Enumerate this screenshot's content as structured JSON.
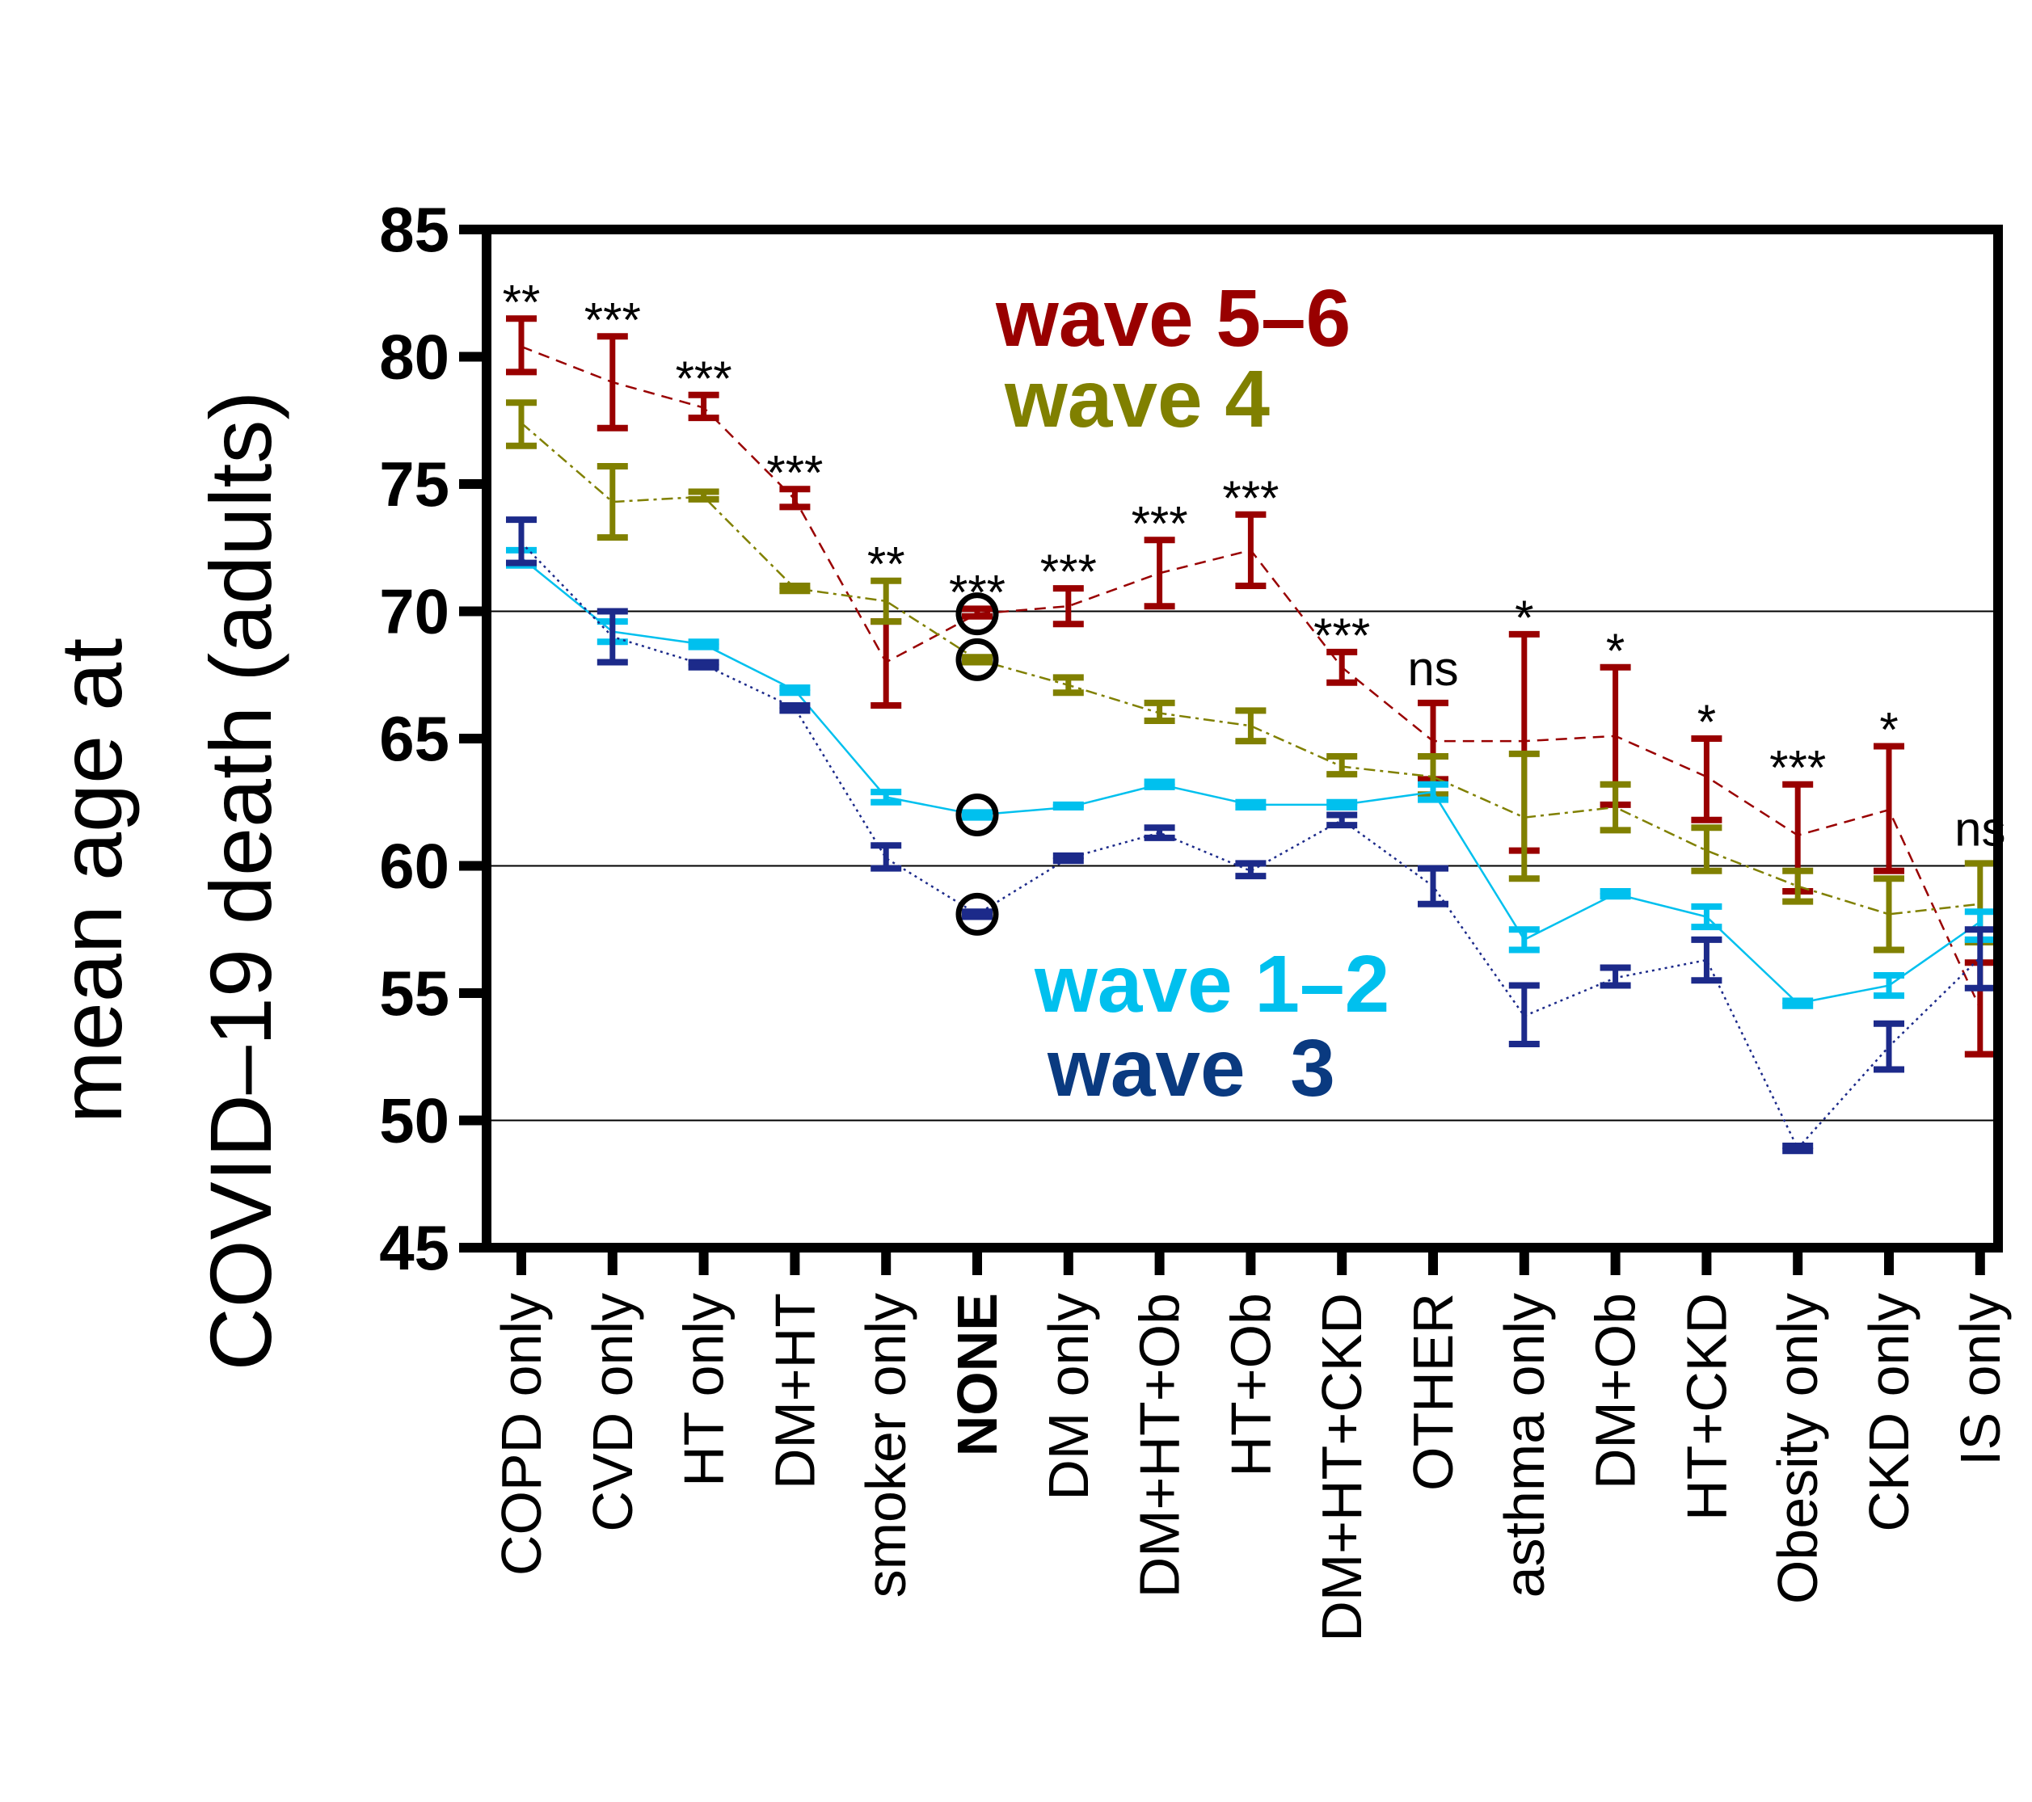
{
  "chart_data": {
    "type": "line",
    "title": "",
    "xlabel": "",
    "ylabel": [
      "mean age at",
      "COVID–19 death (adults)"
    ],
    "ylim": [
      45,
      85
    ],
    "yticks": [
      "45",
      "50",
      "55",
      "60",
      "65",
      "70",
      "75",
      "80",
      "85"
    ],
    "gridlines": [
      50,
      60,
      70
    ],
    "categories": [
      "COPD only",
      "CVD only",
      "HT only",
      "DM+HT",
      "smoker only",
      "NONE",
      "DM only",
      "DM+HT+Ob",
      "HT+Ob",
      "DM+HT+CKD",
      "OTHER",
      "asthma only",
      "DM+Ob",
      "HT+CKD",
      "Obesity only",
      "CKD only",
      "IS only"
    ],
    "bold_category": "NONE",
    "significance": [
      "**",
      "***",
      "***",
      "***",
      "**",
      "***",
      "***",
      "***",
      "***",
      "***",
      "ns",
      "*",
      "*",
      "*",
      "***",
      "*",
      "ns"
    ],
    "series": [
      {
        "name": "wave 5–6",
        "legend_label": "wave 5–6",
        "color": "#990000",
        "line": "dashed",
        "values": [
          80.4,
          79.0,
          78.0,
          74.4,
          68.0,
          69.9,
          70.2,
          71.5,
          72.4,
          67.8,
          64.9,
          64.9,
          65.1,
          63.5,
          61.2,
          62.2,
          54.4
        ],
        "lower": [
          79.4,
          77.2,
          77.6,
          74.1,
          66.3,
          69.8,
          69.5,
          70.2,
          71.0,
          67.2,
          63.4,
          60.6,
          62.4,
          61.8,
          59.0,
          59.8,
          52.6
        ],
        "upper": [
          81.5,
          80.8,
          78.5,
          74.8,
          69.6,
          70.1,
          70.9,
          72.8,
          73.8,
          68.4,
          66.4,
          69.1,
          67.8,
          65.0,
          63.2,
          64.7,
          56.2
        ]
      },
      {
        "name": "wave 4",
        "legend_label": "wave 4",
        "color": "#808000",
        "line": "dashdot",
        "values": [
          77.4,
          74.3,
          74.5,
          70.9,
          70.4,
          68.1,
          67.1,
          66.0,
          65.5,
          63.9,
          63.5,
          61.9,
          62.3,
          60.6,
          59.2,
          58.1,
          58.5
        ],
        "lower": [
          76.5,
          72.9,
          74.4,
          70.8,
          69.6,
          68.0,
          66.8,
          65.7,
          64.9,
          63.6,
          62.8,
          59.5,
          61.4,
          59.8,
          58.6,
          56.7,
          57.0
        ],
        "upper": [
          78.2,
          75.7,
          74.7,
          71.0,
          71.2,
          68.2,
          67.4,
          66.4,
          66.1,
          64.3,
          64.3,
          64.4,
          63.2,
          61.5,
          59.8,
          59.5,
          60.1
        ]
      },
      {
        "name": "wave 1–2",
        "legend_label": "wave 1–2",
        "color": "#00c0ee",
        "line": "solid",
        "values": [
          72.1,
          69.2,
          68.7,
          66.9,
          62.7,
          62.0,
          62.3,
          63.2,
          62.4,
          62.4,
          62.9,
          57.1,
          58.9,
          58.0,
          54.6,
          55.3,
          57.8
        ],
        "lower": [
          71.8,
          68.8,
          68.6,
          66.8,
          62.5,
          61.9,
          62.3,
          63.1,
          62.3,
          62.3,
          62.6,
          56.7,
          58.8,
          57.6,
          54.5,
          54.9,
          57.1
        ],
        "upper": [
          72.4,
          69.6,
          68.8,
          67.0,
          62.9,
          62.1,
          62.4,
          63.3,
          62.5,
          62.5,
          63.2,
          57.5,
          59.0,
          58.4,
          54.7,
          55.7,
          58.2
        ]
      },
      {
        "name": "wave 3",
        "legend_label": "wave  3",
        "color": "#1c2a8a",
        "legend_color": "#0a3a80",
        "line": "dotted",
        "values": [
          72.7,
          69.0,
          67.9,
          66.2,
          60.3,
          58.1,
          60.3,
          61.3,
          59.8,
          61.8,
          59.2,
          54.1,
          55.6,
          56.3,
          48.9,
          52.9,
          56.4
        ],
        "lower": [
          71.9,
          68.0,
          67.8,
          66.1,
          59.9,
          58.0,
          60.2,
          61.1,
          59.6,
          61.6,
          58.5,
          53.0,
          55.3,
          55.5,
          48.8,
          52.0,
          55.2
        ],
        "upper": [
          73.6,
          70.0,
          68.0,
          66.3,
          60.8,
          58.2,
          60.4,
          61.5,
          60.1,
          62.0,
          59.9,
          55.3,
          56.0,
          57.1,
          49.0,
          53.8,
          57.5
        ]
      }
    ],
    "highlight_category": "NONE",
    "legend_placement": "inside"
  }
}
